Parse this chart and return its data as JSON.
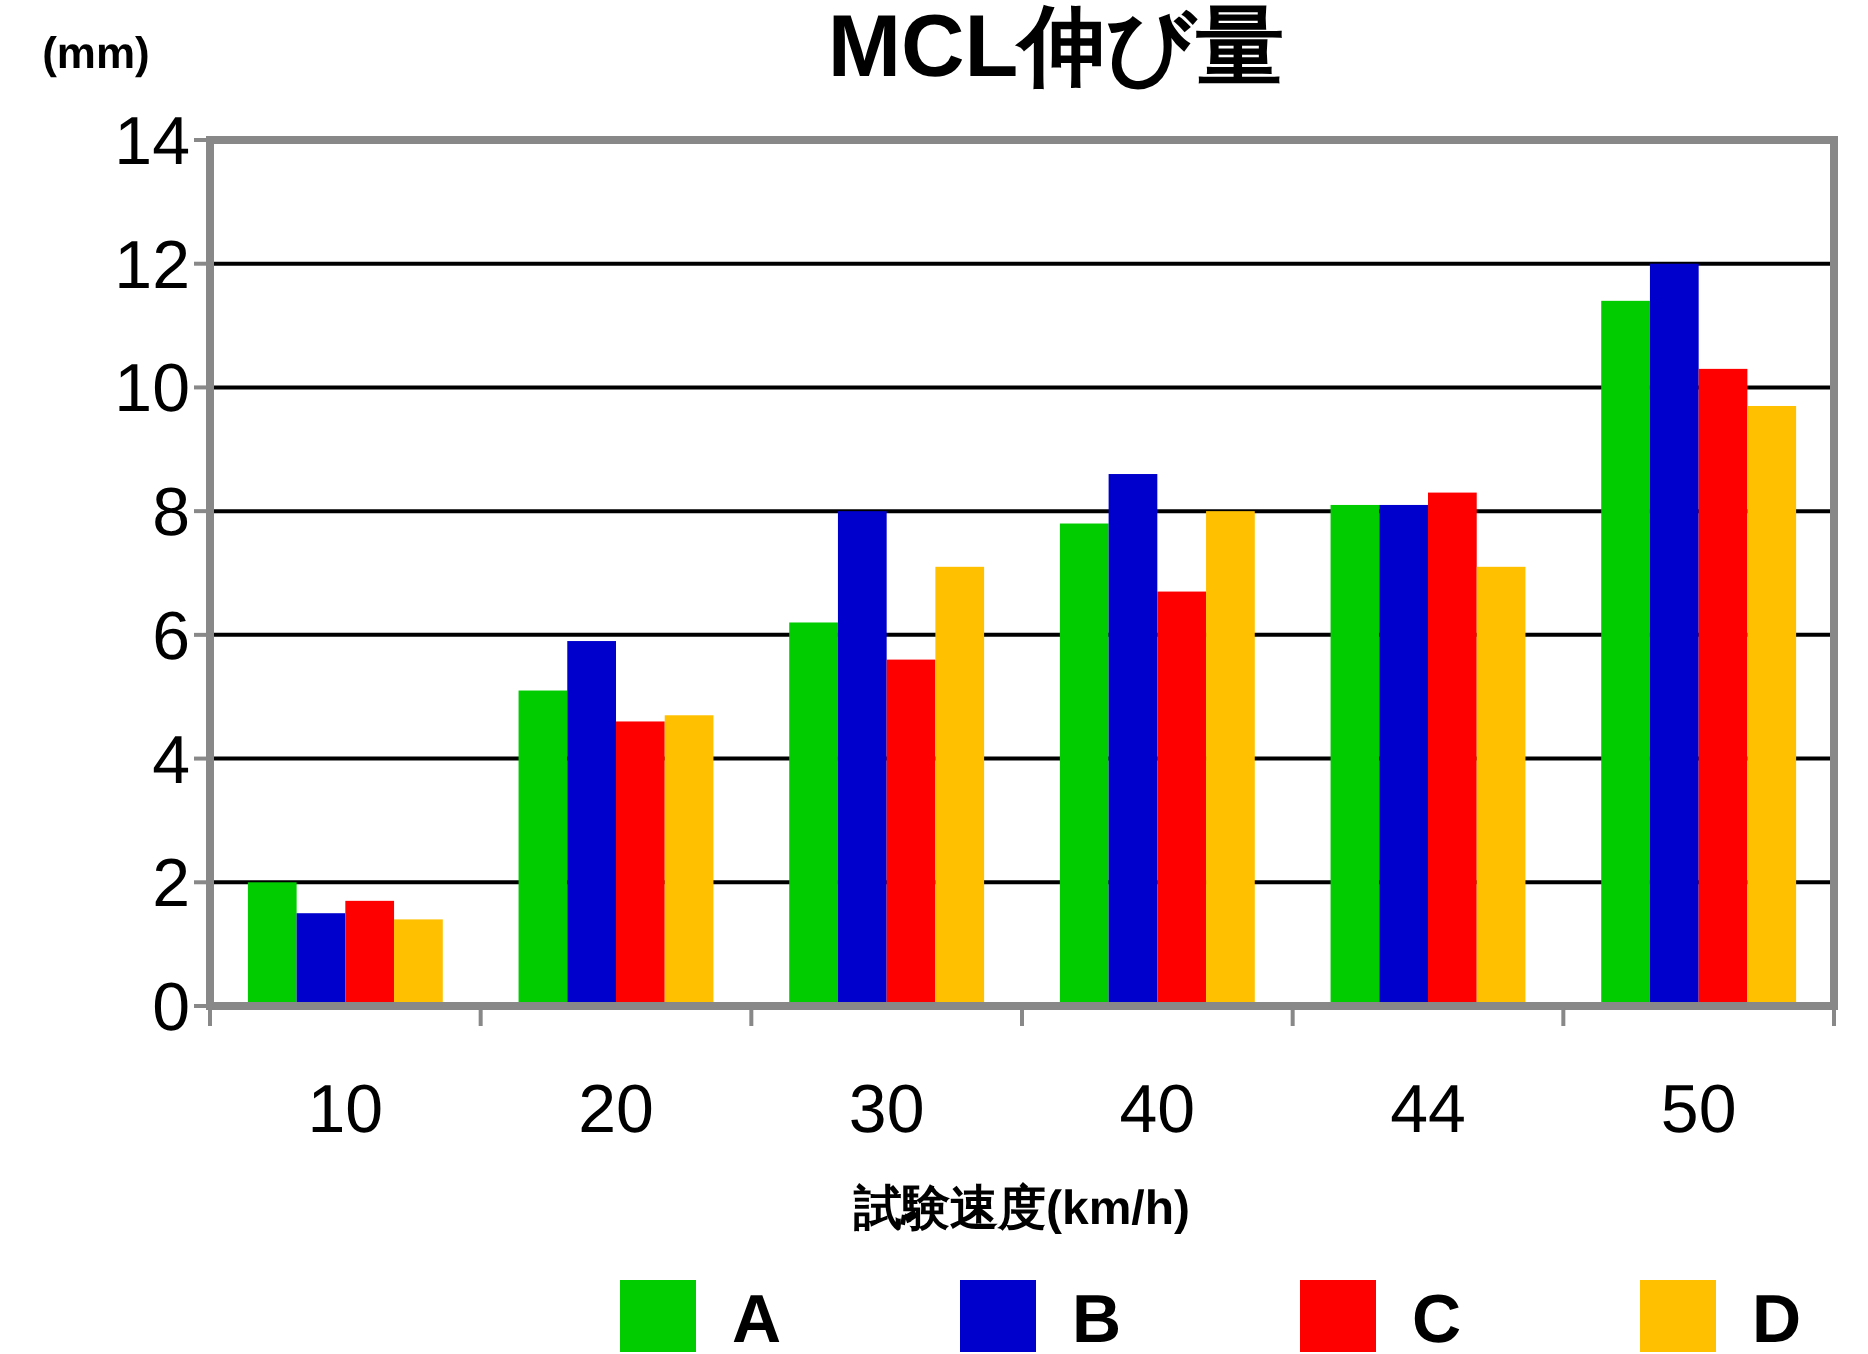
{
  "chart_data": {
    "type": "bar",
    "title": "MCL伸び量",
    "ylabel": "(mm)",
    "xlabel": "試験速度(km/h)",
    "categories": [
      "10",
      "20",
      "30",
      "40",
      "44",
      "50"
    ],
    "series": [
      {
        "name": "A",
        "color": "#00cc00",
        "values": [
          2.0,
          5.1,
          6.2,
          7.8,
          8.1,
          11.4
        ]
      },
      {
        "name": "B",
        "color": "#0000cc",
        "values": [
          1.5,
          5.9,
          8.0,
          8.6,
          8.1,
          12.0
        ]
      },
      {
        "name": "C",
        "color": "#ff0000",
        "values": [
          1.7,
          4.6,
          5.6,
          6.7,
          8.3,
          10.3
        ]
      },
      {
        "name": "D",
        "color": "#ffc000",
        "values": [
          1.4,
          4.7,
          7.1,
          8.0,
          7.1,
          9.7
        ]
      }
    ],
    "ylim": [
      0,
      14
    ],
    "yticks": [
      0,
      2,
      4,
      6,
      8,
      10,
      12,
      14
    ],
    "grid": "y",
    "legend": "bottom"
  }
}
